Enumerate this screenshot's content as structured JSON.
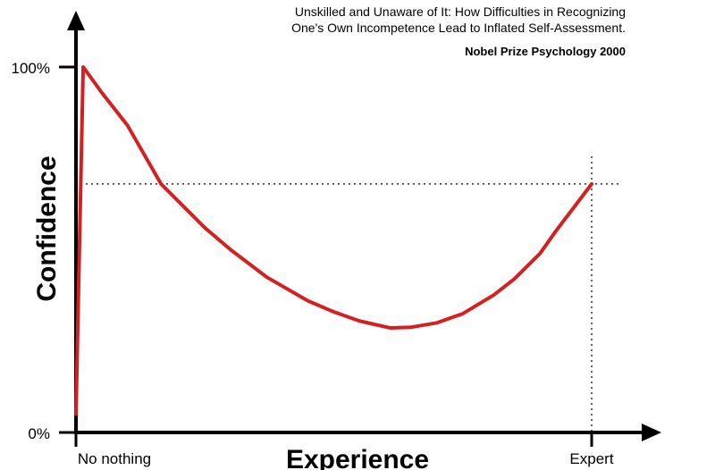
{
  "chart_data": {
    "type": "line",
    "title": [
      "Unskilled and Unaware of It: How Difficulties in Recognizing",
      "One's Own Incompetence Lead to Inflated Self-Assessment."
    ],
    "subtitle": "Nobel Prize Psychology  2000",
    "x_label": "Experience",
    "y_label": "Confidence",
    "x": [
      0,
      1.4,
      5,
      10,
      16.5,
      25,
      30,
      37,
      45,
      50,
      55,
      61,
      65,
      70,
      75,
      81,
      85,
      90,
      93,
      100
    ],
    "series": [
      {
        "color": "#d42020",
        "values": [
          5,
          100,
          93,
          84,
          68,
          56,
          50,
          42.5,
          36,
          33,
          30.5,
          28.6,
          28.8,
          30,
          32.5,
          37.6,
          42,
          49,
          55,
          68
        ]
      }
    ],
    "xlim": [
      0,
      100
    ],
    "ylim": [
      0,
      100
    ],
    "xticks": [
      {
        "value": 0,
        "label": "No nothing"
      },
      {
        "value": 100,
        "label": "Expert"
      }
    ],
    "yticks": [
      {
        "value": 0,
        "label": "0%"
      },
      {
        "value": 100,
        "label": "100%"
      }
    ],
    "hline": 68,
    "vline": 100
  }
}
